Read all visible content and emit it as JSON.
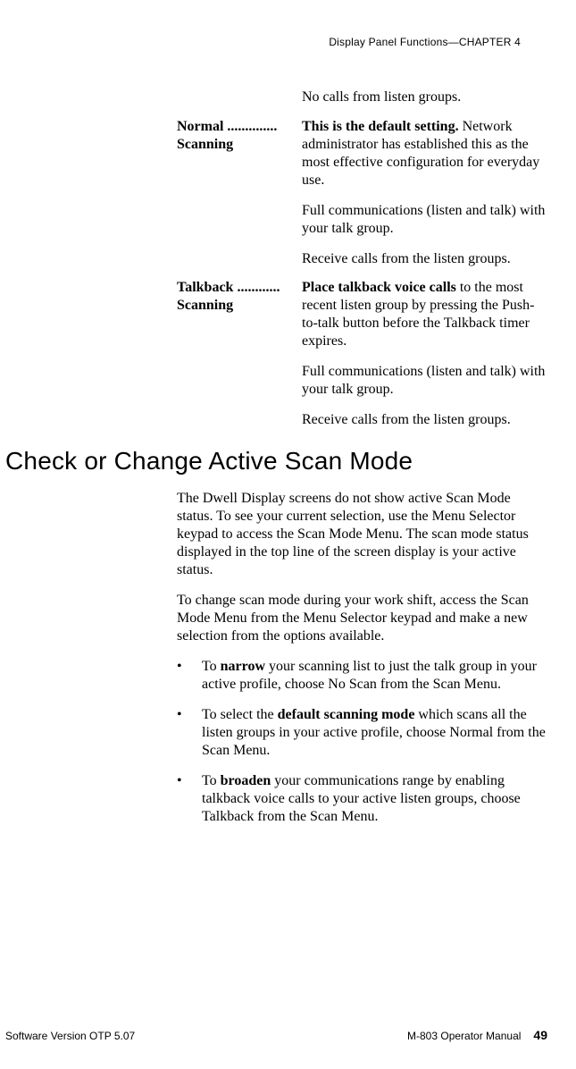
{
  "header": {
    "running_head": "Display Panel Functions—CHAPTER 4"
  },
  "definitions": {
    "orphan_line": "No calls from listen groups.",
    "normal": {
      "term_line1": "Normal ..............",
      "term_line2": "Scanning",
      "lead": "This is the default setting.",
      "p1_rest": " Network administrator has established this as the most effective configuration for everyday use.",
      "p2": "Full communications (listen and talk) with your talk group.",
      "p3": "Receive calls from the listen groups."
    },
    "talkback": {
      "term_line1": "Talkback ............",
      "term_line2": "Scanning",
      "lead": "Place talkback voice calls",
      "p1_rest": " to the most recent listen group by pressing the Push-to-talk button before the Talkback timer expires.",
      "p2": "Full communications (listen and talk) with your talk group.",
      "p3": "Receive calls from the listen groups."
    }
  },
  "section": {
    "title": "Check or Change Active Scan Mode",
    "p1": "The Dwell Display screens do not show active Scan Mode status. To see your current selection, use the Menu Selector keypad to access the Scan Mode Menu. The scan mode status displayed in the top line of the screen display is your active status.",
    "p2": "To change scan mode during your work shift, access the Scan Mode Menu from the Menu Selector keypad and make a new selection from the options available.",
    "bullets": [
      {
        "pre": "To ",
        "bold": "narrow",
        "post": " your scanning list to just the talk group in your active profile, choose No Scan from the Scan Menu."
      },
      {
        "pre": "To select the ",
        "bold": "default scanning mode",
        "post": " which scans all the listen groups in your active profile, choose Normal from the Scan Menu."
      },
      {
        "pre": "To ",
        "bold": "broaden",
        "post": " your communications range by enabling talkback voice calls to your active listen groups, choose Talkback from the Scan Menu."
      }
    ]
  },
  "footer": {
    "left": "Software Version OTP 5.07",
    "manual": "M-803 Operator Manual",
    "page": "49"
  }
}
